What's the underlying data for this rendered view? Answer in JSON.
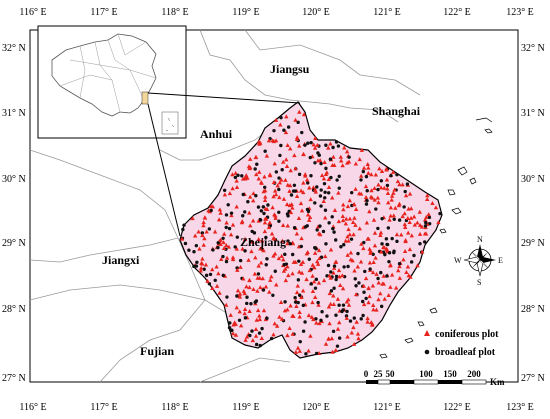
{
  "map": {
    "x_ticks": [
      "116° E",
      "117° E",
      "118° E",
      "119° E",
      "120° E",
      "121° E",
      "122° E",
      "123° E"
    ],
    "y_ticks": [
      "32° N",
      "31° N",
      "30° N",
      "29° N",
      "28° N",
      "27° N"
    ],
    "regions": {
      "jiangsu": "Jiangsu",
      "shanghai": "Shanghai",
      "anhui": "Anhui",
      "zhejiang": "Zhejiang",
      "jiangxi": "Jiangxi",
      "fujian": "Fujian"
    },
    "legend": {
      "coniferous": "coniferous plot",
      "broadleaf": "broadleaf plot"
    },
    "scale_bar": {
      "ticks": [
        "0",
        "25",
        "50",
        "100",
        "150",
        "200"
      ],
      "unit": "Km"
    },
    "compass": {
      "n": "N",
      "s": "S",
      "e": "E",
      "w": "W"
    },
    "colors": {
      "province_fill": "#f7d7e8",
      "coniferous": "#e8231e",
      "broadleaf": "#111111",
      "inset_highlight": "#f3d79a"
    }
  }
}
